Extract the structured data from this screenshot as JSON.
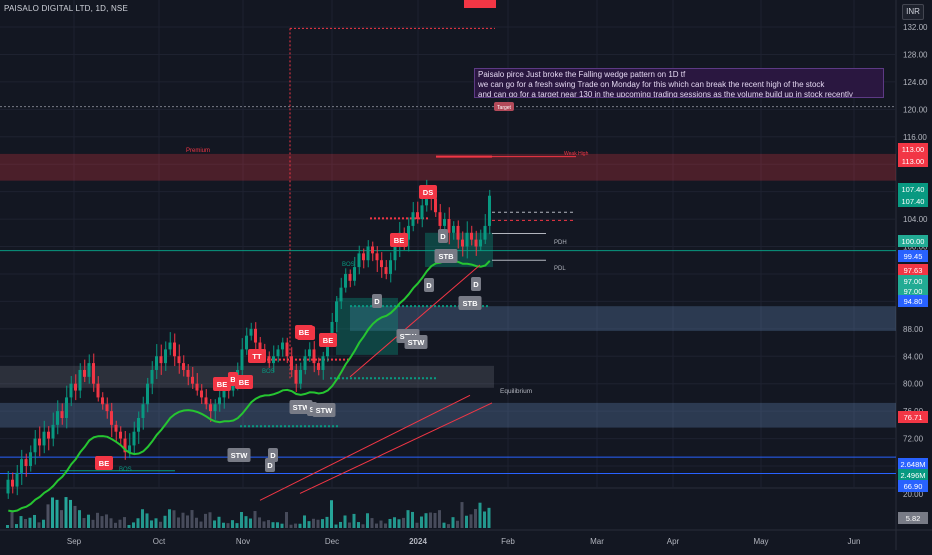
{
  "chart_data": {
    "type": "candlestick",
    "title": "PAISALO DIGITAL LTD, 1D, NSE",
    "currency": "INR",
    "price_axis_ticks": [
      132.0,
      128.0,
      124.0,
      120.0,
      116.0,
      112.0,
      108.0,
      104.0,
      100.0,
      96.0,
      92.0,
      88.0,
      84.0,
      80.0,
      76.0,
      72.0,
      68.0
    ],
    "volume_axis_ticks": [
      20.0
    ],
    "time_axis_labels": [
      "Sep",
      "Oct",
      "Nov",
      "Dec",
      "2024",
      "Feb",
      "Mar",
      "Apr",
      "May",
      "Jun"
    ],
    "price_tags": [
      {
        "value": "113.00",
        "color": "#f23645"
      },
      {
        "value": "113.00",
        "color": "#f23645"
      },
      {
        "value": "107.40",
        "color": "#089981"
      },
      {
        "value": "107.40",
        "color": "#089981"
      },
      {
        "value": "100.00",
        "color": "#22ab94"
      },
      {
        "value": "99.45",
        "color": "#2962ff"
      },
      {
        "value": "97.63",
        "color": "#f23645"
      },
      {
        "value": "97.00",
        "color": "#22ab94"
      },
      {
        "value": "97.00",
        "color": "#22ab94"
      },
      {
        "value": "94.80",
        "color": "#2962ff"
      },
      {
        "value": "76.71",
        "color": "#f23645"
      },
      {
        "value": "2.648M",
        "color": "#2962ff"
      },
      {
        "value": "2.496M",
        "color": "#089981"
      },
      {
        "value": "66.90",
        "color": "#2962ff"
      },
      {
        "value": "5.82",
        "color": "#787b86"
      }
    ],
    "annotation": [
      "Paisalo pirce Just broke the Falling wedge pattern on 1D tf",
      "we can go for a fresh swing Trade on Monday for this which can break the recent high of the stock",
      "and can go for a target near 130 in the upcoming trading sessions as the volume build up in stock recently"
    ],
    "zone_labels": {
      "premium": "Premium",
      "equilibrium": "Equilibrium",
      "weak_high": "Weak High",
      "target": "Target",
      "pdh": "PDH",
      "pdl": "PDL",
      "bos": "BOS"
    },
    "signal_labels": [
      {
        "text": "BE",
        "color": "#f23645"
      },
      {
        "text": "BE",
        "color": "#f23645"
      },
      {
        "text": "B",
        "color": "#f23645"
      },
      {
        "text": "BE",
        "color": "#f23645"
      },
      {
        "text": "TT",
        "color": "#f23645"
      },
      {
        "text": "BE",
        "color": "#f23645"
      },
      {
        "text": "BE",
        "color": "#f23645"
      },
      {
        "text": "BE",
        "color": "#f23645"
      },
      {
        "text": "DS",
        "color": "#f23645"
      },
      {
        "text": "BE",
        "color": "#f23645"
      },
      {
        "text": "STW",
        "color": "#787b86"
      },
      {
        "text": "D",
        "color": "#787b86"
      },
      {
        "text": "STW",
        "color": "#787b86"
      },
      {
        "text": "S",
        "color": "#787b86"
      },
      {
        "text": "STW",
        "color": "#787b86"
      },
      {
        "text": "D",
        "color": "#787b86"
      },
      {
        "text": "STW",
        "color": "#787b86"
      },
      {
        "text": "STW",
        "color": "#787b86"
      },
      {
        "text": "D",
        "color": "#787b86"
      },
      {
        "text": "STB",
        "color": "#787b86"
      },
      {
        "text": "D",
        "color": "#787b86"
      },
      {
        "text": "D",
        "color": "#787b86"
      },
      {
        "text": "STB",
        "color": "#787b86"
      },
      {
        "text": "D",
        "color": "#787b86"
      }
    ],
    "series": [
      {
        "name": "price",
        "ohlc_approx": [
          [
            64,
            66
          ],
          [
            66,
            65
          ],
          [
            65,
            67
          ],
          [
            67,
            69
          ],
          [
            69,
            68
          ],
          [
            68,
            70
          ],
          [
            70,
            72
          ],
          [
            72,
            71
          ],
          [
            71,
            73
          ],
          [
            73,
            72
          ],
          [
            72,
            74
          ],
          [
            74,
            76
          ],
          [
            76,
            75
          ],
          [
            75,
            78
          ],
          [
            78,
            80
          ],
          [
            80,
            79
          ],
          [
            79,
            82
          ],
          [
            82,
            81
          ],
          [
            81,
            83
          ],
          [
            83,
            80
          ],
          [
            80,
            78
          ],
          [
            78,
            77
          ],
          [
            77,
            76
          ],
          [
            76,
            74
          ],
          [
            74,
            73
          ],
          [
            73,
            72
          ],
          [
            72,
            70
          ],
          [
            70,
            71
          ],
          [
            71,
            73
          ],
          [
            73,
            75
          ],
          [
            75,
            77
          ],
          [
            77,
            80
          ],
          [
            80,
            82
          ],
          [
            82,
            84
          ],
          [
            84,
            83
          ],
          [
            83,
            85
          ],
          [
            85,
            86
          ],
          [
            86,
            84
          ],
          [
            84,
            83
          ],
          [
            83,
            82
          ],
          [
            82,
            81
          ],
          [
            81,
            80
          ],
          [
            80,
            79
          ],
          [
            79,
            78
          ],
          [
            78,
            77
          ],
          [
            77,
            76
          ],
          [
            76,
            77
          ],
          [
            77,
            78
          ],
          [
            78,
            80
          ],
          [
            80,
            79
          ],
          [
            79,
            80
          ],
          [
            80,
            82
          ],
          [
            82,
            85
          ],
          [
            85,
            87
          ],
          [
            87,
            88
          ],
          [
            88,
            86
          ],
          [
            86,
            85
          ],
          [
            85,
            84
          ],
          [
            84,
            83
          ],
          [
            83,
            84
          ],
          [
            84,
            85
          ],
          [
            85,
            86
          ],
          [
            86,
            84
          ],
          [
            84,
            82
          ],
          [
            82,
            80
          ],
          [
            80,
            82
          ],
          [
            82,
            84
          ],
          [
            84,
            85
          ],
          [
            85,
            83
          ],
          [
            83,
            82
          ],
          [
            82,
            84
          ],
          [
            84,
            86
          ],
          [
            86,
            89
          ],
          [
            89,
            92
          ],
          [
            92,
            94
          ],
          [
            94,
            96
          ],
          [
            96,
            95
          ],
          [
            95,
            97
          ],
          [
            97,
            99
          ],
          [
            99,
            98
          ],
          [
            98,
            100
          ],
          [
            100,
            99
          ],
          [
            99,
            98
          ],
          [
            98,
            97
          ],
          [
            97,
            96
          ],
          [
            96,
            98
          ],
          [
            98,
            100
          ],
          [
            100,
            102
          ],
          [
            102,
            101
          ],
          [
            101,
            103
          ],
          [
            103,
            105
          ],
          [
            105,
            104
          ],
          [
            104,
            106
          ],
          [
            106,
            108
          ],
          [
            108,
            107
          ],
          [
            107,
            105
          ],
          [
            105,
            103
          ],
          [
            103,
            104
          ],
          [
            104,
            102
          ],
          [
            102,
            103
          ],
          [
            103,
            101
          ],
          [
            101,
            100
          ],
          [
            100,
            102
          ],
          [
            102,
            101
          ],
          [
            101,
            100
          ],
          [
            100,
            101
          ],
          [
            101,
            103
          ],
          [
            103,
            107.4
          ]
        ]
      }
    ]
  }
}
